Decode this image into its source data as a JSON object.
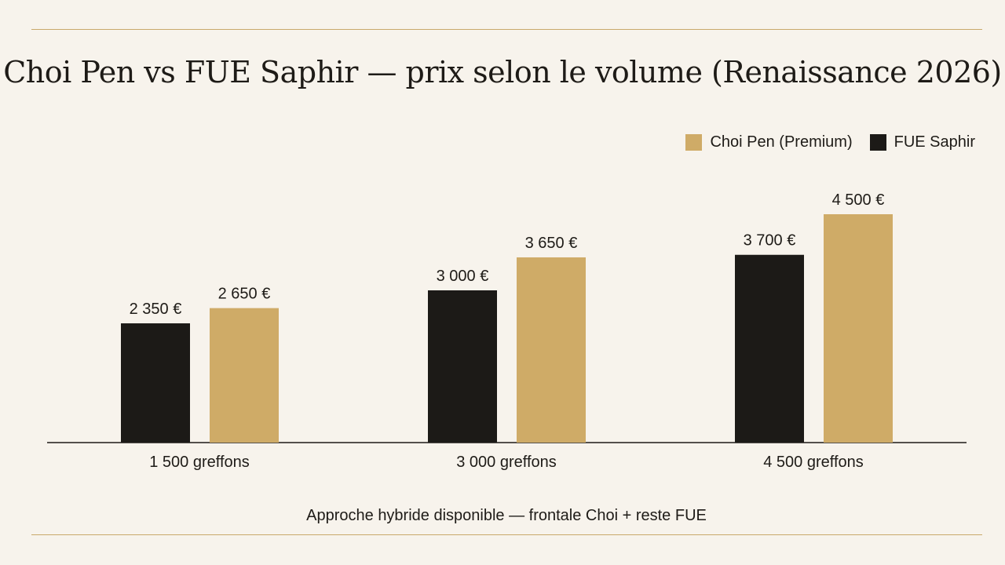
{
  "colors": {
    "background": "#f7f3ec",
    "rule": "#c9a96a",
    "choi": "#cfab67",
    "fue": "#1c1a17",
    "text": "#1e1b17"
  },
  "footnote": "Approche hybride disponible — frontale Choi + reste FUE",
  "legend": {
    "choi_label": "Choi Pen (Premium)",
    "fue_label": "FUE Saphir"
  },
  "chart_data": {
    "type": "bar",
    "title": "Choi Pen vs FUE Saphir — prix selon le volume (Renaissance 2026)",
    "xlabel": "",
    "ylabel": "",
    "categories": [
      "1 500 greffons",
      "3 000 greffons",
      "4 500 greffons"
    ],
    "series": [
      {
        "name": "FUE Saphir",
        "color": "#1c1a17",
        "values": [
          2350,
          3000,
          3700
        ],
        "labels": [
          "2 350 €",
          "3 000 €",
          "3 700 €"
        ]
      },
      {
        "name": "Choi Pen (Premium)",
        "color": "#cfab67",
        "values": [
          2650,
          3650,
          4500
        ],
        "labels": [
          "2 650 €",
          "3 650 €",
          "4 500 €"
        ]
      }
    ],
    "legend_position": "top-right",
    "grid": false
  }
}
